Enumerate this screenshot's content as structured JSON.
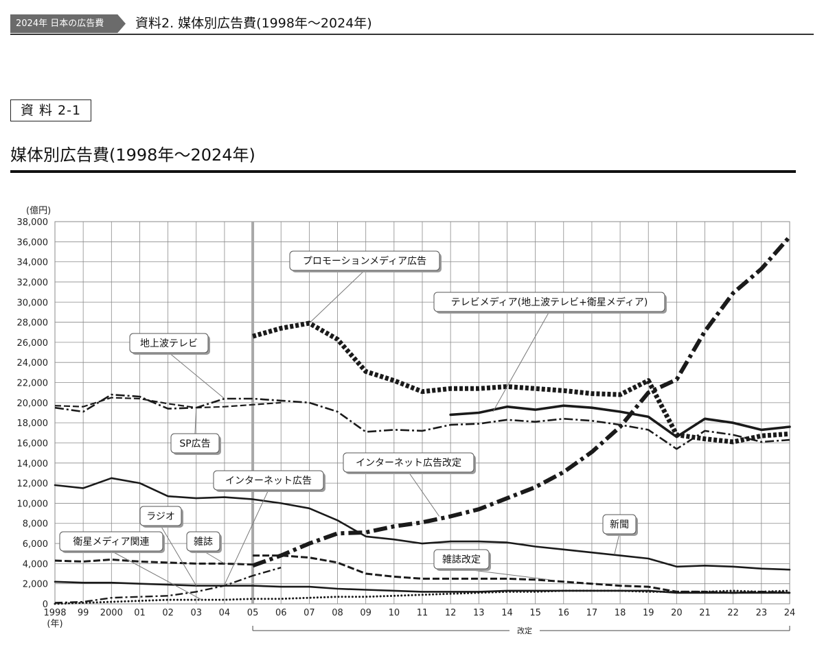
{
  "header": {
    "tag": "2024年 日本の広告費",
    "title": "資料2. 媒体別広告費(1998年〜2024年)"
  },
  "section_label": "資 料 2-1",
  "main_title": "媒体別広告費(1998年〜2024年)",
  "colors": {
    "line": "#1a1a1a",
    "grid": "#8a8a8a",
    "divider": "#a8a8a8",
    "callout_border": "#555555"
  },
  "chart_data": {
    "type": "line",
    "title": "",
    "ylabel": "(億円)",
    "xlabel": "(年)",
    "ylim": [
      0,
      38000
    ],
    "yticks": [
      0,
      2000,
      4000,
      6000,
      8000,
      10000,
      12000,
      14000,
      16000,
      18000,
      20000,
      22000,
      24000,
      26000,
      28000,
      30000,
      32000,
      34000,
      36000,
      38000
    ],
    "ytick_labels": [
      "0",
      "2,000",
      "4,000",
      "6,000",
      "8,000",
      "10,000",
      "12,000",
      "14,000",
      "16,000",
      "18,000",
      "20,000",
      "22,000",
      "24,000",
      "26,000",
      "28,000",
      "30,000",
      "32,000",
      "34,000",
      "36,000",
      "38,000"
    ],
    "x_years": [
      1998,
      1999,
      2000,
      2001,
      2002,
      2003,
      2004,
      2005,
      2006,
      2007,
      2008,
      2009,
      2010,
      2011,
      2012,
      2013,
      2014,
      2015,
      2016,
      2017,
      2018,
      2019,
      2020,
      2021,
      2022,
      2023,
      2024
    ],
    "x_tick_labels": [
      "1998",
      "99",
      "2000",
      "01",
      "02",
      "03",
      "04",
      "05",
      "06",
      "07",
      "08",
      "09",
      "10",
      "11",
      "12",
      "13",
      "14",
      "15",
      "16",
      "17",
      "18",
      "19",
      "20",
      "21",
      "22",
      "23",
      "24"
    ],
    "revision_year": 2005,
    "revision_label": "改定",
    "series": [
      {
        "name": "プロモーションメディア広告",
        "style": "promo",
        "x": [
          2005,
          2006,
          2007,
          2008,
          2009,
          2010,
          2011,
          2012,
          2013,
          2014,
          2015,
          2016,
          2017,
          2018,
          2019,
          2020,
          2021,
          2022,
          2023,
          2024
        ],
        "values": [
          26600,
          27400,
          27900,
          26300,
          23100,
          22200,
          21100,
          21400,
          21400,
          21600,
          21400,
          21200,
          20900,
          20800,
          22200,
          16800,
          16400,
          16100,
          16700,
          16900
        ]
      },
      {
        "name": "テレビメディア(地上波テレビ+衛星メディア)",
        "style": "solidthick",
        "x": [
          2012,
          2013,
          2014,
          2015,
          2016,
          2017,
          2018,
          2019,
          2020,
          2021,
          2022,
          2023,
          2024
        ],
        "values": [
          18800,
          19000,
          19600,
          19300,
          19700,
          19500,
          19100,
          18600,
          16600,
          18400,
          18000,
          17300,
          17600
        ]
      },
      {
        "name": "地上波テレビ",
        "style": "dashdot",
        "x": [
          1998,
          1999,
          2000,
          2001,
          2002,
          2003,
          2004,
          2005,
          2006,
          2007,
          2008,
          2009,
          2010,
          2011,
          2012,
          2013,
          2014,
          2015,
          2016,
          2017,
          2018,
          2019,
          2020,
          2021,
          2022,
          2023,
          2024
        ],
        "values": [
          19500,
          19100,
          20800,
          20600,
          19400,
          19500,
          20400,
          20400,
          20200,
          20000,
          19100,
          17100,
          17300,
          17200,
          17800,
          17900,
          18300,
          18100,
          18400,
          18200,
          17800,
          17300,
          15400,
          17200,
          16800,
          16100,
          16300
        ]
      },
      {
        "name": "SP広告",
        "style": "dashthin",
        "x": [
          1998,
          1999,
          2000,
          2001,
          2002,
          2003,
          2004,
          2005,
          2006
        ],
        "values": [
          19700,
          19600,
          20500,
          20400,
          19900,
          19500,
          19600,
          19800,
          20000
        ]
      },
      {
        "name": "新聞",
        "style": "solid",
        "x": [
          1998,
          1999,
          2000,
          2001,
          2002,
          2003,
          2004,
          2005,
          2006,
          2007,
          2008,
          2009,
          2010,
          2011,
          2012,
          2013,
          2014,
          2015,
          2016,
          2017,
          2018,
          2019,
          2020,
          2021,
          2022,
          2023,
          2024
        ],
        "values": [
          11800,
          11500,
          12500,
          12000,
          10700,
          10500,
          10600,
          10400,
          10000,
          9500,
          8300,
          6700,
          6400,
          6000,
          6200,
          6200,
          6100,
          5700,
          5400,
          5100,
          4800,
          4500,
          3700,
          3800,
          3700,
          3500,
          3400
        ]
      },
      {
        "name": "雑誌",
        "style": "dashmed",
        "x": [
          1998,
          1999,
          2000,
          2001,
          2002,
          2003,
          2004,
          2005
        ],
        "values": [
          4300,
          4200,
          4400,
          4200,
          4100,
          4000,
          4000,
          3900
        ]
      },
      {
        "name": "雑誌改定",
        "style": "dashmed",
        "x": [
          2005,
          2006,
          2007,
          2008,
          2009,
          2010,
          2011,
          2012,
          2013,
          2014,
          2015,
          2016,
          2017,
          2018,
          2019,
          2020,
          2021,
          2022,
          2023,
          2024
        ],
        "values": [
          4800,
          4800,
          4600,
          4100,
          3000,
          2700,
          2500,
          2500,
          2500,
          2500,
          2400,
          2200,
          2000,
          1800,
          1700,
          1200,
          1200,
          1100,
          1200,
          1100
        ]
      },
      {
        "name": "ラジオ",
        "style": "solid",
        "x": [
          1998,
          1999,
          2000,
          2001,
          2002,
          2003,
          2004,
          2005,
          2006,
          2007,
          2008,
          2009,
          2010,
          2011,
          2012,
          2013,
          2014,
          2015,
          2016,
          2017,
          2018,
          2019,
          2020,
          2021,
          2022,
          2023,
          2024
        ],
        "values": [
          2200,
          2100,
          2100,
          2000,
          1900,
          1800,
          1800,
          1800,
          1700,
          1700,
          1500,
          1400,
          1300,
          1200,
          1200,
          1200,
          1300,
          1300,
          1300,
          1300,
          1300,
          1300,
          1100,
          1100,
          1100,
          1100,
          1100
        ]
      },
      {
        "name": "インターネット広告",
        "style": "dashdotthin",
        "x": [
          1998,
          1999,
          2000,
          2001,
          2002,
          2003,
          2004,
          2005,
          2006
        ],
        "values": [
          100,
          200,
          600,
          700,
          800,
          1200,
          1800,
          2800,
          3600
        ]
      },
      {
        "name": "インターネット広告改定",
        "style": "dashdotthick",
        "x": [
          2005,
          2006,
          2007,
          2008,
          2009,
          2010,
          2011,
          2012,
          2013,
          2014,
          2015,
          2016,
          2017,
          2018,
          2019,
          2020,
          2021,
          2022,
          2023,
          2024
        ],
        "values": [
          3800,
          4800,
          6000,
          7000,
          7100,
          7700,
          8100,
          8700,
          9400,
          10500,
          11600,
          13100,
          15100,
          17600,
          21000,
          22300,
          27100,
          30900,
          33300,
          36500
        ]
      },
      {
        "name": "衛星メディア関連",
        "style": "dotted",
        "x": [
          1998,
          1999,
          2000,
          2001,
          2002,
          2003,
          2004,
          2005,
          2006,
          2007,
          2008,
          2009,
          2010,
          2011,
          2012,
          2013,
          2014,
          2015,
          2016,
          2017,
          2018,
          2019,
          2020,
          2021,
          2022,
          2023,
          2024
        ],
        "values": [
          0,
          100,
          200,
          300,
          400,
          400,
          400,
          500,
          500,
          600,
          700,
          700,
          800,
          900,
          1000,
          1100,
          1200,
          1200,
          1300,
          1300,
          1300,
          1200,
          1200,
          1200,
          1300,
          1200,
          1300
        ]
      }
    ],
    "callouts": [
      {
        "text": "プロモーションメディア広告",
        "year": 2007,
        "value": 27900
      },
      {
        "text": "テレビメディア(地上波テレビ+衛星メディア)",
        "year": 13.5,
        "value": 19100
      },
      {
        "text": "地上波テレビ",
        "year": 2004,
        "value": 20400
      },
      {
        "text": "SP広告",
        "year": 2003,
        "value": 19500
      },
      {
        "text": "インターネット広告改定",
        "year": 2011.6,
        "value": 8700
      },
      {
        "text": "インターネット広告",
        "year": 2004,
        "value": 1900
      },
      {
        "text": "ラジオ",
        "year": 2003,
        "value": 1800
      },
      {
        "text": "雑誌",
        "year": 2004,
        "value": 4000
      },
      {
        "text": "衛星メディア関連",
        "year": 2003.2,
        "value": 400
      },
      {
        "text": "新聞",
        "year": 2017.8,
        "value": 4900
      },
      {
        "text": "雑誌改定",
        "year": 2015.5,
        "value": 2400
      }
    ]
  }
}
